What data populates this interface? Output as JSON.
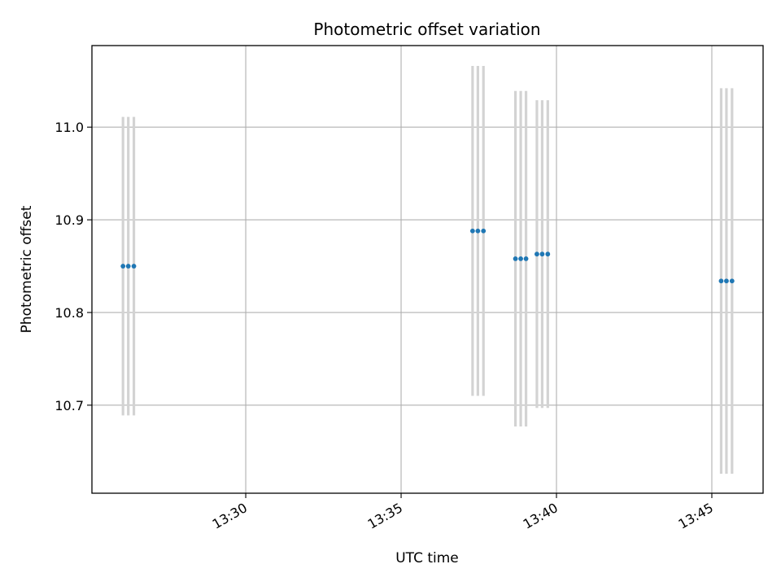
{
  "chart_data": {
    "type": "scatter",
    "title": "Photometric offset variation",
    "xlabel": "UTC time",
    "ylabel": "Photometric offset",
    "x_tick_labels": [
      "13:30",
      "13:35",
      "13:40",
      "13:45"
    ],
    "x_ticks_min": [
      810,
      815,
      820,
      825
    ],
    "xlim_min": [
      805.05,
      826.65
    ],
    "y_ticks": [
      10.7,
      10.8,
      10.9,
      11.0
    ],
    "ylim": [
      10.605,
      11.088
    ],
    "grid": true,
    "point_color": "#1f77b4",
    "errorbar_color": "#d3d3d3",
    "series": [
      {
        "x_min": [
          806.05,
          806.22,
          806.4,
          817.3,
          817.47,
          817.65,
          818.68,
          818.85,
          819.02,
          819.37,
          819.54,
          819.72,
          825.3,
          825.47,
          825.65
        ],
        "y": [
          10.85,
          10.85,
          10.85,
          10.888,
          10.888,
          10.888,
          10.858,
          10.858,
          10.858,
          10.863,
          10.863,
          10.863,
          10.834,
          10.834,
          10.834
        ],
        "yerr": [
          0.161,
          0.161,
          0.161,
          0.178,
          0.178,
          0.178,
          0.181,
          0.181,
          0.181,
          0.166,
          0.166,
          0.166,
          0.208,
          0.208,
          0.208
        ]
      }
    ]
  }
}
